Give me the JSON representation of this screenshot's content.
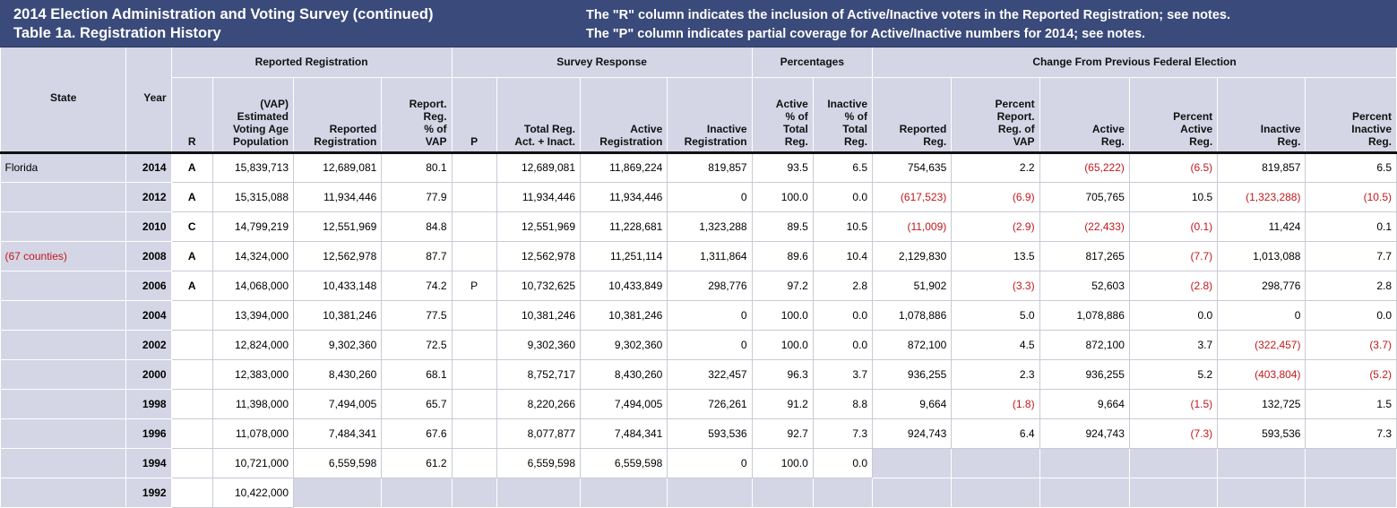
{
  "banner": {
    "title_line1": "2014 Election Administration and Voting Survey (continued)",
    "title_line2": "Table 1a. Registration History",
    "note_r": "The \"R\" column indicates the inclusion of Active/Inactive voters in the Reported Registration; see notes.",
    "note_p": "The \"P\" column indicates partial coverage for Active/Inactive numbers for 2014; see notes."
  },
  "groups": {
    "reported_registration": "Reported Registration",
    "survey_response": "Survey Response",
    "percentages": "Percentages",
    "change": "Change From Previous Federal Election"
  },
  "headers": {
    "state": "State",
    "year": "Year",
    "r": "R",
    "vap": [
      "(VAP)",
      "Estimated",
      "Voting Age",
      "Population"
    ],
    "reported_registration": [
      "Reported",
      "Registration"
    ],
    "report_reg_pct_vap": [
      "Report.",
      "Reg.",
      "% of",
      "VAP"
    ],
    "p": "P",
    "total_reg": [
      "Total Reg.",
      "Act. + Inact."
    ],
    "active_registration": [
      "Active",
      "Registration"
    ],
    "inactive_registration": [
      "Inactive",
      "Registration"
    ],
    "active_pct": [
      "Active",
      "% of",
      "Total",
      "Reg."
    ],
    "inactive_pct": [
      "Inactive",
      "% of",
      "Total",
      "Reg."
    ],
    "chg_reported": [
      "Reported",
      "Reg."
    ],
    "chg_pct_report": [
      "Percent",
      "Report.",
      "Reg. of",
      "VAP"
    ],
    "chg_active": [
      "Active",
      "Reg."
    ],
    "chg_pct_active": [
      "Percent",
      "Active",
      "Reg."
    ],
    "chg_inactive": [
      "Inactive",
      "Reg."
    ],
    "chg_pct_inactive": [
      "Percent",
      "Inactive",
      "Reg."
    ]
  },
  "rows": [
    {
      "state": "Florida",
      "year": "2014",
      "r": "A",
      "vap": "15,839,713",
      "reported": "12,689,081",
      "pct_vap": "80.1",
      "p": "",
      "total": "12,689,081",
      "active": "11,869,224",
      "inactive": "819,857",
      "active_pct": "93.5",
      "inactive_pct": "6.5",
      "chg_reported": "754,635",
      "chg_pct_report": "2.2",
      "chg_active": "(65,222)",
      "chg_pct_active": "(6.5)",
      "chg_inactive": "819,857",
      "chg_pct_inactive": "6.5"
    },
    {
      "state": "",
      "year": "2012",
      "r": "A",
      "vap": "15,315,088",
      "reported": "11,934,446",
      "pct_vap": "77.9",
      "p": "",
      "total": "11,934,446",
      "active": "11,934,446",
      "inactive": "0",
      "active_pct": "100.0",
      "inactive_pct": "0.0",
      "chg_reported": "(617,523)",
      "chg_pct_report": "(6.9)",
      "chg_active": "705,765",
      "chg_pct_active": "10.5",
      "chg_inactive": "(1,323,288)",
      "chg_pct_inactive": "(10.5)"
    },
    {
      "state": "",
      "year": "2010",
      "r": "C",
      "vap": "14,799,219",
      "reported": "12,551,969",
      "pct_vap": "84.8",
      "p": "",
      "total": "12,551,969",
      "active": "11,228,681",
      "inactive": "1,323,288",
      "active_pct": "89.5",
      "inactive_pct": "10.5",
      "chg_reported": "(11,009)",
      "chg_pct_report": "(2.9)",
      "chg_active": "(22,433)",
      "chg_pct_active": "(0.1)",
      "chg_inactive": "11,424",
      "chg_pct_inactive": "0.1"
    },
    {
      "state": "(67 counties)",
      "year": "2008",
      "r": "A",
      "vap": "14,324,000",
      "reported": "12,562,978",
      "pct_vap": "87.7",
      "p": "",
      "total": "12,562,978",
      "active": "11,251,114",
      "inactive": "1,311,864",
      "active_pct": "89.6",
      "inactive_pct": "10.4",
      "chg_reported": "2,129,830",
      "chg_pct_report": "13.5",
      "chg_active": "817,265",
      "chg_pct_active": "(7.7)",
      "chg_inactive": "1,013,088",
      "chg_pct_inactive": "7.7"
    },
    {
      "state": "",
      "year": "2006",
      "r": "A",
      "vap": "14,068,000",
      "reported": "10,433,148",
      "pct_vap": "74.2",
      "p": "P",
      "total": "10,732,625",
      "active": "10,433,849",
      "inactive": "298,776",
      "active_pct": "97.2",
      "inactive_pct": "2.8",
      "chg_reported": "51,902",
      "chg_pct_report": "(3.3)",
      "chg_active": "52,603",
      "chg_pct_active": "(2.8)",
      "chg_inactive": "298,776",
      "chg_pct_inactive": "2.8"
    },
    {
      "state": "",
      "year": "2004",
      "r": "",
      "vap": "13,394,000",
      "reported": "10,381,246",
      "pct_vap": "77.5",
      "p": "",
      "total": "10,381,246",
      "active": "10,381,246",
      "inactive": "0",
      "active_pct": "100.0",
      "inactive_pct": "0.0",
      "chg_reported": "1,078,886",
      "chg_pct_report": "5.0",
      "chg_active": "1,078,886",
      "chg_pct_active": "0.0",
      "chg_inactive": "0",
      "chg_pct_inactive": "0.0"
    },
    {
      "state": "",
      "year": "2002",
      "r": "",
      "vap": "12,824,000",
      "reported": "9,302,360",
      "pct_vap": "72.5",
      "p": "",
      "total": "9,302,360",
      "active": "9,302,360",
      "inactive": "0",
      "active_pct": "100.0",
      "inactive_pct": "0.0",
      "chg_reported": "872,100",
      "chg_pct_report": "4.5",
      "chg_active": "872,100",
      "chg_pct_active": "3.7",
      "chg_inactive": "(322,457)",
      "chg_pct_inactive": "(3.7)"
    },
    {
      "state": "",
      "year": "2000",
      "r": "",
      "vap": "12,383,000",
      "reported": "8,430,260",
      "pct_vap": "68.1",
      "p": "",
      "total": "8,752,717",
      "active": "8,430,260",
      "inactive": "322,457",
      "active_pct": "96.3",
      "inactive_pct": "3.7",
      "chg_reported": "936,255",
      "chg_pct_report": "2.3",
      "chg_active": "936,255",
      "chg_pct_active": "5.2",
      "chg_inactive": "(403,804)",
      "chg_pct_inactive": "(5.2)"
    },
    {
      "state": "",
      "year": "1998",
      "r": "",
      "vap": "11,398,000",
      "reported": "7,494,005",
      "pct_vap": "65.7",
      "p": "",
      "total": "8,220,266",
      "active": "7,494,005",
      "inactive": "726,261",
      "active_pct": "91.2",
      "inactive_pct": "8.8",
      "chg_reported": "9,664",
      "chg_pct_report": "(1.8)",
      "chg_active": "9,664",
      "chg_pct_active": "(1.5)",
      "chg_inactive": "132,725",
      "chg_pct_inactive": "1.5"
    },
    {
      "state": "",
      "year": "1996",
      "r": "",
      "vap": "11,078,000",
      "reported": "7,484,341",
      "pct_vap": "67.6",
      "p": "",
      "total": "8,077,877",
      "active": "7,484,341",
      "inactive": "593,536",
      "active_pct": "92.7",
      "inactive_pct": "7.3",
      "chg_reported": "924,743",
      "chg_pct_report": "6.4",
      "chg_active": "924,743",
      "chg_pct_active": "(7.3)",
      "chg_inactive": "593,536",
      "chg_pct_inactive": "7.3"
    },
    {
      "state": "",
      "year": "1994",
      "r": "",
      "vap": "10,721,000",
      "reported": "6,559,598",
      "pct_vap": "61.2",
      "p": "",
      "total": "6,559,598",
      "active": "6,559,598",
      "inactive": "0",
      "active_pct": "100.0",
      "inactive_pct": "0.0",
      "chg_reported": null,
      "chg_pct_report": null,
      "chg_active": null,
      "chg_pct_active": null,
      "chg_inactive": null,
      "chg_pct_inactive": null
    },
    {
      "state": "",
      "year": "1992",
      "r": "",
      "vap": "10,422,000",
      "reported": null,
      "pct_vap": null,
      "p": null,
      "total": null,
      "active": null,
      "inactive": null,
      "active_pct": null,
      "inactive_pct": null,
      "chg_reported": null,
      "chg_pct_report": null,
      "chg_active": null,
      "chg_pct_active": null,
      "chg_inactive": null,
      "chg_pct_inactive": null
    }
  ]
}
